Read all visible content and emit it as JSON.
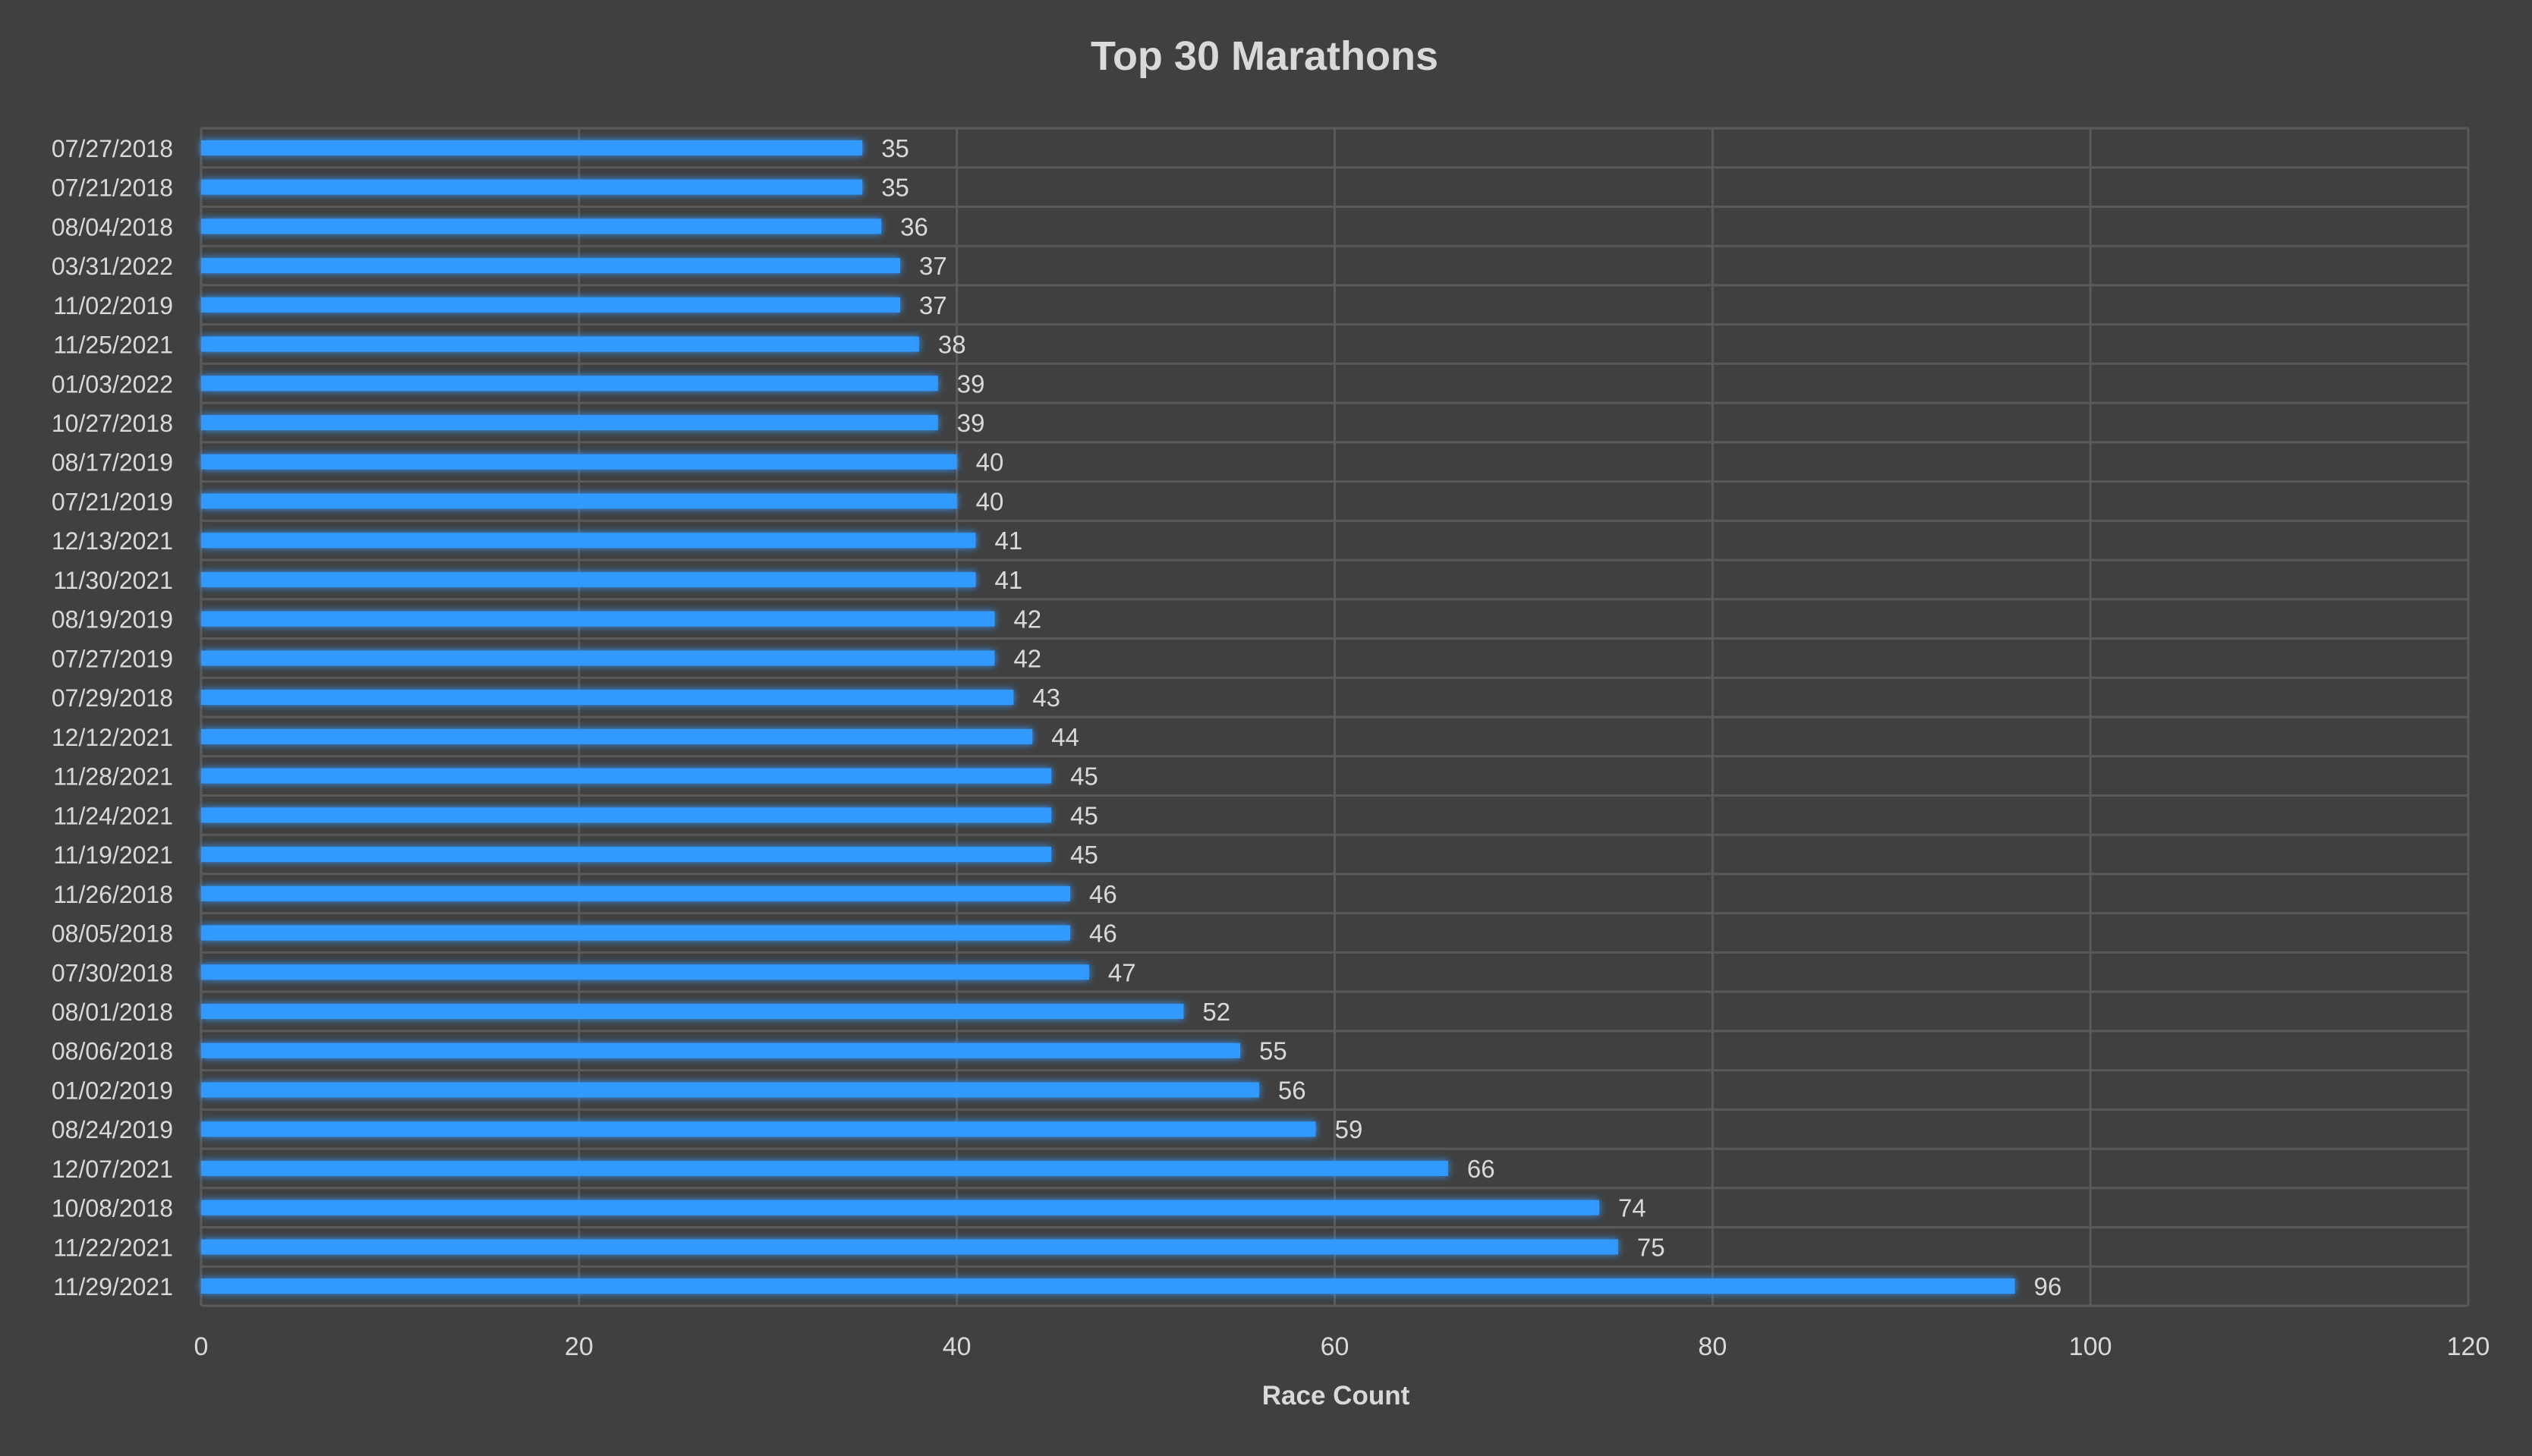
{
  "chart_data": {
    "type": "bar",
    "orientation": "horizontal",
    "title": "Top 30 Marathons",
    "xlabel": "Race Count",
    "ylabel": "",
    "xlim": [
      0,
      120
    ],
    "x_ticks": [
      "0",
      "20",
      "40",
      "60",
      "80",
      "100",
      "120"
    ],
    "grid": true,
    "data_labels": true,
    "bar_color": "#3399ff",
    "background_color": "#404040",
    "categories": [
      "07/27/2018",
      "07/21/2018",
      "08/04/2018",
      "03/31/2022",
      "11/02/2019",
      "11/25/2021",
      "01/03/2022",
      "10/27/2018",
      "08/17/2019",
      "07/21/2019",
      "12/13/2021",
      "11/30/2021",
      "08/19/2019",
      "07/27/2019",
      "07/29/2018",
      "12/12/2021",
      "11/28/2021",
      "11/24/2021",
      "11/19/2021",
      "11/26/2018",
      "08/05/2018",
      "07/30/2018",
      "08/01/2018",
      "08/06/2018",
      "01/02/2019",
      "08/24/2019",
      "12/07/2021",
      "10/08/2018",
      "11/22/2021",
      "11/29/2021"
    ],
    "values": [
      35,
      35,
      36,
      37,
      37,
      38,
      39,
      39,
      40,
      40,
      41,
      41,
      42,
      42,
      43,
      44,
      45,
      45,
      45,
      46,
      46,
      47,
      52,
      55,
      56,
      59,
      66,
      74,
      75,
      96
    ]
  }
}
